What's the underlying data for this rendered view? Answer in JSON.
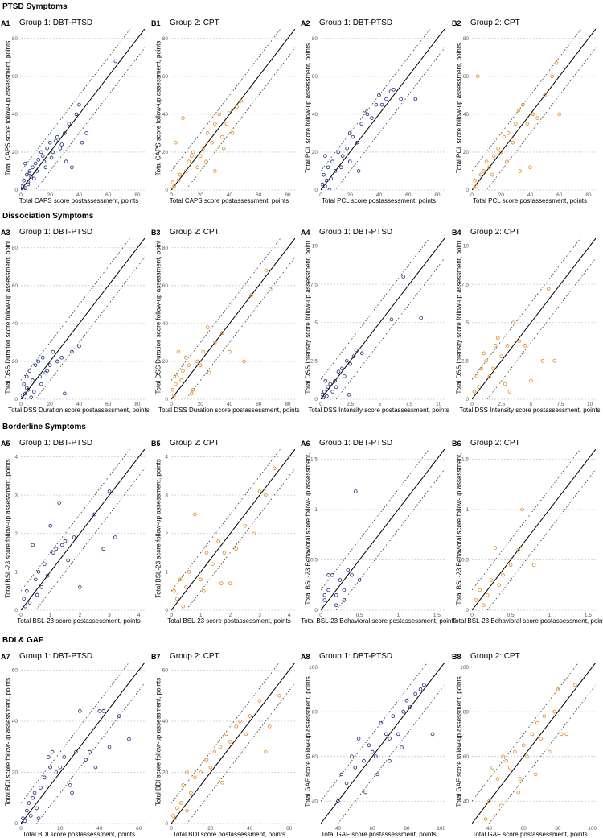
{
  "sections": [
    "PTSD Symptoms",
    "Dissociation Symptoms",
    "Borderline Symptoms",
    "BDI & GAF"
  ],
  "colors": {
    "group1": "#1c2a7a",
    "group2": "#e8891c",
    "grid": "#c8c8c8",
    "line": "#000000"
  },
  "chart_data": [
    {
      "id": "A1",
      "type": "scatter",
      "title": "Group 1: DBT-PTSD",
      "xlabel": "Total CAPS score postassessment, points",
      "ylabel": "Total CAPS score follow-up assessment, points",
      "lim": [
        0,
        85
      ],
      "ticks": [
        0,
        20,
        40,
        60,
        80
      ],
      "band": 10,
      "group": 1,
      "x": [
        0,
        1,
        2,
        3,
        4,
        5,
        6,
        7,
        8,
        10,
        12,
        15,
        18,
        20,
        22,
        25,
        28,
        30,
        33,
        38,
        40,
        42,
        45,
        65,
        3,
        6,
        9,
        14,
        17,
        21,
        24,
        27,
        31,
        35,
        2,
        5,
        11,
        16
      ],
      "y": [
        0,
        2,
        5,
        1,
        8,
        3,
        10,
        7,
        12,
        14,
        16,
        18,
        22,
        25,
        20,
        28,
        24,
        30,
        35,
        40,
        45,
        25,
        30,
        68,
        14,
        9,
        6,
        20,
        12,
        17,
        26,
        22,
        15,
        12,
        0,
        4,
        10,
        15
      ]
    },
    {
      "id": "B1",
      "type": "scatter",
      "title": "Group 2: CPT",
      "xlabel": "Total CAPS score postassessment, points",
      "ylabel": "Total CAPS score follow-up assessment, points",
      "lim": [
        0,
        85
      ],
      "ticks": [
        0,
        20,
        40,
        60,
        80
      ],
      "band": 10,
      "group": 2,
      "x": [
        0,
        1,
        3,
        5,
        8,
        10,
        12,
        15,
        18,
        20,
        22,
        25,
        28,
        30,
        33,
        35,
        38,
        40,
        45,
        48,
        2,
        6,
        14,
        24,
        30,
        36,
        42
      ],
      "y": [
        0,
        4,
        25,
        5,
        38,
        10,
        15,
        20,
        12,
        18,
        22,
        30,
        25,
        35,
        40,
        28,
        35,
        42,
        44,
        47,
        2,
        8,
        18,
        15,
        10,
        22,
        30
      ]
    },
    {
      "id": "A2",
      "type": "scatter",
      "title": "Group 1: DBT-PTSD",
      "xlabel": "Total PCL score postassessment, points",
      "ylabel": "Total PCL score follow-up assessment, points",
      "lim": [
        0,
        85
      ],
      "ticks": [
        0,
        20,
        40,
        60,
        80
      ],
      "band": 10,
      "group": 1,
      "x": [
        0,
        1,
        2,
        3,
        4,
        5,
        6,
        8,
        10,
        12,
        15,
        18,
        20,
        22,
        25,
        28,
        30,
        32,
        35,
        38,
        40,
        42,
        45,
        48,
        50,
        55,
        65,
        3,
        7,
        14,
        20,
        26
      ],
      "y": [
        0,
        3,
        8,
        2,
        5,
        12,
        0,
        15,
        10,
        20,
        18,
        22,
        30,
        28,
        25,
        35,
        42,
        40,
        38,
        45,
        50,
        45,
        48,
        52,
        53,
        48,
        48,
        18,
        6,
        12,
        15,
        10
      ]
    },
    {
      "id": "B2",
      "type": "scatter",
      "title": "Group 2: CPT",
      "xlabel": "Total PCL score postassessment, points",
      "ylabel": "Total PCL score follow-up assessment, points",
      "lim": [
        0,
        85
      ],
      "ticks": [
        0,
        20,
        40,
        60,
        80
      ],
      "band": 10,
      "group": 2,
      "x": [
        0,
        2,
        4,
        6,
        8,
        10,
        12,
        15,
        18,
        20,
        22,
        25,
        28,
        30,
        32,
        35,
        38,
        40,
        42,
        45,
        50,
        55,
        58,
        60,
        3,
        14,
        24,
        33
      ],
      "y": [
        0,
        5,
        60,
        8,
        10,
        15,
        12,
        18,
        22,
        20,
        28,
        30,
        25,
        35,
        42,
        45,
        35,
        12,
        40,
        38,
        50,
        60,
        67,
        40,
        2,
        8,
        15,
        10
      ]
    },
    {
      "id": "A3",
      "type": "scatter",
      "title": "Group 1: DBT-PTSD",
      "xlabel": "Total DSS Duration score postassessment, points",
      "ylabel": "Total DSS Duration score follow-up assessment, points",
      "lim": [
        0,
        85
      ],
      "ticks": [
        0,
        20,
        40,
        60,
        80
      ],
      "band": 10,
      "group": 1,
      "x": [
        0,
        1,
        2,
        3,
        4,
        5,
        6,
        7,
        8,
        10,
        12,
        14,
        15,
        18,
        20,
        22,
        25,
        28,
        30,
        35,
        40,
        2,
        4,
        9,
        13,
        17
      ],
      "y": [
        0,
        2,
        8,
        3,
        12,
        5,
        15,
        1,
        10,
        18,
        20,
        8,
        22,
        15,
        18,
        25,
        20,
        22,
        3,
        25,
        28,
        0,
        6,
        4,
        12,
        14
      ]
    },
    {
      "id": "B3",
      "type": "scatter",
      "title": "Group 2: CPT",
      "xlabel": "Total DSS Duration score postassessment, points",
      "ylabel": "Total DSS Duration score follow-up assessment, points",
      "lim": [
        0,
        85
      ],
      "ticks": [
        0,
        20,
        40,
        60,
        80
      ],
      "band": 10,
      "group": 2,
      "x": [
        0,
        1,
        2,
        3,
        5,
        7,
        8,
        10,
        12,
        15,
        18,
        20,
        22,
        25,
        30,
        35,
        40,
        50,
        55,
        65,
        68,
        4,
        14,
        26
      ],
      "y": [
        0,
        5,
        2,
        8,
        25,
        10,
        15,
        22,
        18,
        5,
        20,
        18,
        25,
        38,
        30,
        35,
        25,
        20,
        55,
        68,
        58,
        12,
        3,
        14
      ]
    },
    {
      "id": "A4",
      "type": "scatter",
      "title": "Group 1: DBT-PTSD",
      "xlabel": "Total DSS Intensity score postassessment, points",
      "ylabel": "Total DSS Intensity score follow-up assessment, points",
      "lim": [
        0,
        10.5
      ],
      "ticks": [
        0,
        2.5,
        5,
        7.5,
        10
      ],
      "band": 1.3,
      "group": 1,
      "x": [
        0,
        0.1,
        0.2,
        0.3,
        0.5,
        0.6,
        0.8,
        1.0,
        1.2,
        1.5,
        1.8,
        2.0,
        2.2,
        2.5,
        2.8,
        3.0,
        3.5,
        6.0,
        7.0,
        8.5,
        0.4,
        1.3,
        2.4
      ],
      "y": [
        0,
        0.3,
        0.1,
        0.5,
        0.2,
        0.8,
        1.0,
        0.5,
        1.2,
        1.8,
        2.0,
        1.5,
        2.5,
        2.3,
        2.8,
        3.2,
        3.0,
        5.2,
        8.0,
        5.3,
        1.2,
        0.8,
        0.3
      ]
    },
    {
      "id": "B4",
      "type": "scatter",
      "title": "Group 2: CPT",
      "xlabel": "Total DSS Intensity score postassessment, points",
      "ylabel": "Total DSS Intensity score follow-up assessment, points",
      "lim": [
        0,
        10.5
      ],
      "ticks": [
        0,
        2.5,
        5,
        7.5,
        10
      ],
      "band": 1.3,
      "group": 2,
      "x": [
        0,
        0.2,
        0.4,
        0.6,
        0.8,
        1.0,
        1.2,
        1.5,
        1.8,
        2.0,
        2.2,
        2.5,
        3.0,
        3.5,
        4.0,
        4.5,
        5.0,
        6.0,
        6.5,
        7.0,
        3.2,
        2.8
      ],
      "y": [
        0,
        0.5,
        1.5,
        0.8,
        2.0,
        3.0,
        2.5,
        1.5,
        2.0,
        3.5,
        4.0,
        2.8,
        3.5,
        5.0,
        3.8,
        3.5,
        1.2,
        2.5,
        7.2,
        2.5,
        0.5,
        1.0
      ]
    },
    {
      "id": "A5",
      "type": "scatter",
      "title": "Group 1: DBT-PTSD",
      "xlabel": "Total BSL-23 score postassessment, points",
      "ylabel": "Total BSL-23 score follow-up assessment, points",
      "lim": [
        0,
        4.2
      ],
      "ticks": [
        0,
        1,
        2,
        3,
        4
      ],
      "band": 0.5,
      "group": 1,
      "x": [
        0,
        0.1,
        0.2,
        0.3,
        0.4,
        0.5,
        0.6,
        0.7,
        0.8,
        0.9,
        1.0,
        1.1,
        1.2,
        1.3,
        1.5,
        1.6,
        1.8,
        2.0,
        2.5,
        2.8,
        3.0,
        3.2,
        0.15,
        0.55,
        1.4
      ],
      "y": [
        0,
        0.3,
        0.5,
        0.2,
        1.7,
        0.8,
        1.0,
        0.6,
        1.2,
        0.9,
        2.2,
        1.5,
        1.6,
        2.8,
        1.8,
        1.3,
        1.9,
        0.6,
        2.5,
        1.6,
        3.1,
        1.9,
        0.1,
        0.4,
        1.7
      ]
    },
    {
      "id": "B5",
      "type": "scatter",
      "title": "Group 2: CPT",
      "xlabel": "Total BSL-23 score postassessment, points",
      "ylabel": "Total BSL-23 score follow-up assessment, points",
      "lim": [
        0,
        4.2
      ],
      "ticks": [
        0,
        1,
        2,
        3,
        4
      ],
      "band": 0.5,
      "group": 2,
      "x": [
        0,
        0.1,
        0.2,
        0.3,
        0.5,
        0.6,
        0.8,
        1.0,
        1.2,
        1.4,
        1.6,
        1.8,
        2.0,
        2.2,
        2.5,
        2.8,
        3.0,
        3.2,
        3.5,
        0.4,
        1.1,
        1.7
      ],
      "y": [
        0,
        0.5,
        0.3,
        0.8,
        0.6,
        1.0,
        2.5,
        0.8,
        1.5,
        1.2,
        1.8,
        1.5,
        0.7,
        1.6,
        2.2,
        2.0,
        3.1,
        3.0,
        3.7,
        0.1,
        0.5,
        0.7
      ]
    },
    {
      "id": "A6",
      "type": "scatter",
      "title": "Group 1: DBT-PTSD",
      "xlabel": "Total BSL-23 Behavioral score postassessment, points",
      "ylabel": "Total BSL-23 Behavioral score follow-up assessment, points",
      "lim": [
        0,
        1.6
      ],
      "ticks": [
        0,
        0.5,
        1,
        1.5
      ],
      "band": 0.2,
      "group": 1,
      "x": [
        0,
        0.05,
        0.1,
        0.15,
        0.2,
        0.25,
        0.3,
        0.35,
        0.4,
        0.45,
        0.5,
        0.1,
        0.2,
        0.3,
        0.05
      ],
      "y": [
        0,
        0.1,
        0.2,
        0.35,
        0.15,
        0.3,
        0.2,
        0.4,
        0.35,
        1.18,
        0.3,
        0.35,
        0.05,
        0.1,
        0.15
      ]
    },
    {
      "id": "B6",
      "type": "scatter",
      "title": "Group 2: CPT",
      "xlabel": "Total BSL-23 Behavioral score postassessment, points",
      "ylabel": "Total BSL-23 Behavioral score follow-up assessment, points",
      "lim": [
        0,
        1.6
      ],
      "ticks": [
        0,
        0.5,
        1,
        1.5
      ],
      "band": 0.2,
      "group": 2,
      "x": [
        0,
        0.05,
        0.1,
        0.2,
        0.25,
        0.3,
        0.4,
        0.5,
        0.6,
        0.65,
        0.8,
        0.15,
        0.35
      ],
      "y": [
        0,
        0.1,
        0.2,
        0.15,
        0.3,
        0.62,
        0.35,
        0.45,
        0.6,
        1.0,
        0.45,
        0.05,
        0.25
      ]
    },
    {
      "id": "A7",
      "type": "scatter",
      "title": "Group 1: DBT-PTSD",
      "xlabel": "Total BDI score postassessment, points",
      "ylabel": "Total BDI score follow-up assessment, points",
      "lim": [
        0,
        63
      ],
      "ticks": [
        0,
        20,
        40,
        60
      ],
      "band": 8,
      "group": 1,
      "x": [
        0,
        1,
        2,
        3,
        4,
        5,
        6,
        7,
        8,
        10,
        12,
        14,
        15,
        16,
        18,
        20,
        22,
        25,
        28,
        30,
        35,
        38,
        40,
        42,
        45,
        50,
        55,
        9,
        26,
        33
      ],
      "y": [
        0,
        2,
        1,
        5,
        8,
        3,
        10,
        12,
        6,
        14,
        18,
        26,
        22,
        28,
        20,
        22,
        26,
        15,
        28,
        44,
        28,
        22,
        44,
        44,
        30,
        42,
        33,
        2,
        12,
        25
      ]
    },
    {
      "id": "B7",
      "type": "scatter",
      "title": "Group 2: CPT",
      "xlabel": "Total BDI score postassessment, points",
      "ylabel": "Total BDI score follow-up assessment, points",
      "lim": [
        0,
        63
      ],
      "ticks": [
        0,
        20,
        40,
        60
      ],
      "band": 8,
      "group": 2,
      "x": [
        0,
        1,
        2,
        3,
        5,
        6,
        8,
        10,
        12,
        15,
        18,
        20,
        22,
        25,
        28,
        30,
        33,
        35,
        38,
        40,
        45,
        48,
        50,
        55,
        8,
        26
      ],
      "y": [
        0,
        3,
        2,
        6,
        8,
        15,
        5,
        12,
        18,
        20,
        25,
        22,
        28,
        30,
        35,
        32,
        38,
        40,
        35,
        42,
        48,
        28,
        38,
        50,
        20,
        16
      ]
    },
    {
      "id": "A8",
      "type": "scatter",
      "title": "Group 1: DBT-PTSD",
      "xlabel": "Total GAF score postassessment, points",
      "ylabel": "Total GAF score follow-up assessment, points",
      "lim": [
        30,
        102
      ],
      "ticks": [
        40,
        60,
        80,
        100
      ],
      "band": 10,
      "group": 1,
      "x": [
        40,
        42,
        45,
        48,
        50,
        52,
        55,
        58,
        60,
        62,
        65,
        68,
        70,
        72,
        75,
        78,
        80,
        82,
        85,
        88,
        90,
        95,
        56,
        63,
        70,
        77
      ],
      "y": [
        40,
        52,
        48,
        60,
        55,
        68,
        58,
        65,
        62,
        60,
        75,
        70,
        68,
        78,
        70,
        80,
        85,
        82,
        88,
        90,
        92,
        70,
        44,
        52,
        58,
        64
      ]
    },
    {
      "id": "B8",
      "type": "scatter",
      "title": "Group 2: CPT",
      "xlabel": "Total GAF score postassessment, points",
      "ylabel": "Total GAF score follow-up assessment, points",
      "lim": [
        30,
        102
      ],
      "ticks": [
        40,
        60,
        80,
        100
      ],
      "band": 10,
      "group": 2,
      "x": [
        38,
        40,
        42,
        45,
        48,
        50,
        52,
        55,
        58,
        60,
        62,
        65,
        68,
        70,
        72,
        75,
        78,
        80,
        82,
        85,
        90,
        47,
        57,
        67
      ],
      "y": [
        32,
        40,
        55,
        50,
        60,
        58,
        55,
        62,
        50,
        65,
        60,
        70,
        75,
        68,
        78,
        62,
        80,
        90,
        70,
        70,
        92,
        38,
        44,
        52
      ]
    }
  ]
}
